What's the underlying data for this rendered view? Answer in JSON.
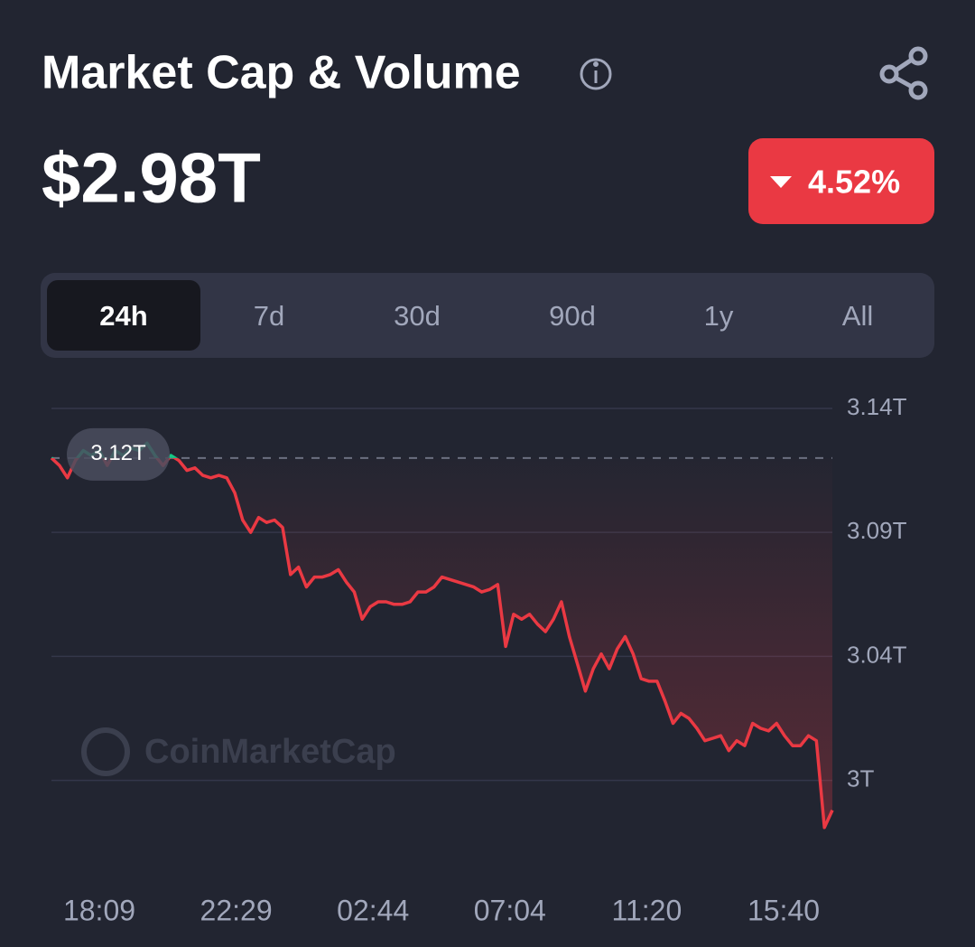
{
  "header": {
    "title": "Market Cap & Volume",
    "value": "$2.98T",
    "change": "4.52%"
  },
  "tabs": {
    "items": [
      "24h",
      "7d",
      "30d",
      "90d",
      "1y",
      "All"
    ],
    "active": 0
  },
  "chart_data": {
    "type": "line",
    "watermark": "CoinMarketCap",
    "x_labels": [
      "18:09",
      "22:29",
      "02:44",
      "07:04",
      "11:20",
      "15:40"
    ],
    "reference": {
      "value": 3.12,
      "label": "3.12T"
    },
    "ylim": [
      2.964,
      3.148
    ],
    "yticks": [
      {
        "value": 3.14,
        "label": "3.14T"
      },
      {
        "value": 3.09,
        "label": "3.09T"
      },
      {
        "value": 3.04,
        "label": "3.04T"
      },
      {
        "value": 2.99,
        "label": "3T"
      }
    ],
    "grid": true,
    "up_color": "#16c784",
    "down_color": "#ea3943",
    "values": [
      3.12,
      3.117,
      3.112,
      3.119,
      3.123,
      3.121,
      3.123,
      3.117,
      3.123,
      3.121,
      3.124,
      3.123,
      3.126,
      3.121,
      3.117,
      3.121,
      3.119,
      3.115,
      3.116,
      3.113,
      3.112,
      3.113,
      3.112,
      3.106,
      3.095,
      3.09,
      3.096,
      3.094,
      3.095,
      3.092,
      3.073,
      3.076,
      3.068,
      3.072,
      3.072,
      3.073,
      3.075,
      3.07,
      3.066,
      3.055,
      3.06,
      3.062,
      3.062,
      3.061,
      3.061,
      3.062,
      3.066,
      3.066,
      3.068,
      3.072,
      3.071,
      3.07,
      3.069,
      3.068,
      3.066,
      3.067,
      3.069,
      3.044,
      3.057,
      3.055,
      3.057,
      3.053,
      3.05,
      3.055,
      3.062,
      3.048,
      3.037,
      3.026,
      3.035,
      3.041,
      3.035,
      3.043,
      3.048,
      3.041,
      3.031,
      3.03,
      3.03,
      3.022,
      3.013,
      3.017,
      3.015,
      3.011,
      3.006,
      3.007,
      3.008,
      3.002,
      3.006,
      3.004,
      3.013,
      3.011,
      3.01,
      3.013,
      3.008,
      3.004,
      3.004,
      3.008,
      3.006,
      2.971,
      2.978
    ]
  }
}
